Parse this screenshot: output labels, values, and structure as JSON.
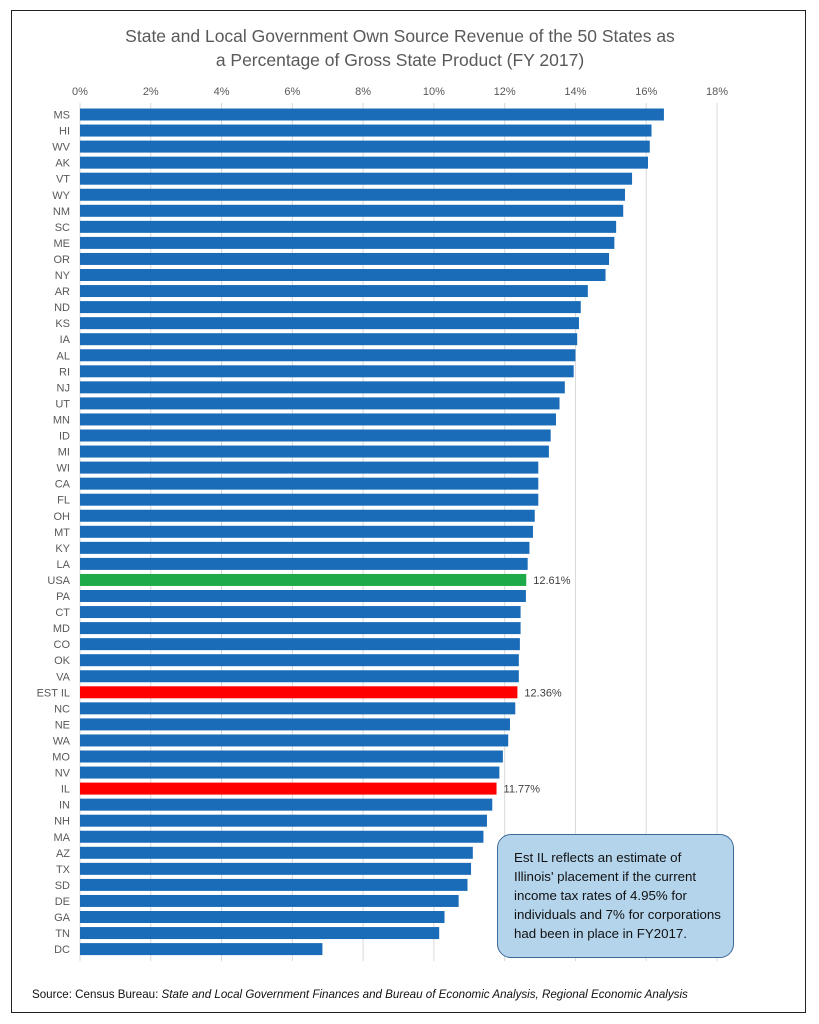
{
  "title_line1": "State and Local Government Own Source Revenue of the 50 States as",
  "title_line2": "a Percentage of Gross State Product (FY 2017)",
  "callout_text": "Est IL reflects an estimate of Illinois' placement if the current income tax rates of 4.95% for individuals and 7% for corporations had been in place in FY2017.",
  "source": {
    "prefix": "Source: Census Bureau: ",
    "italic": "State and Local Government Finances and Bureau of Economic Analysis, Regional Economic Analysis"
  },
  "colors": {
    "default": "#1a6cb8",
    "usa": "#1faa4a",
    "illinois": "#ff0000",
    "grid": "#d9d9d9"
  },
  "chart_data": {
    "type": "bar",
    "orientation": "horizontal",
    "xlim": [
      0,
      18
    ],
    "x_ticks": [
      "0%",
      "2%",
      "4%",
      "6%",
      "8%",
      "10%",
      "12%",
      "14%",
      "16%",
      "18%"
    ],
    "grid": true,
    "unit": "%",
    "categories": [
      "MS",
      "HI",
      "WV",
      "AK",
      "VT",
      "WY",
      "NM",
      "SC",
      "ME",
      "OR",
      "NY",
      "AR",
      "ND",
      "KS",
      "IA",
      "AL",
      "RI",
      "NJ",
      "UT",
      "MN",
      "ID",
      "MI",
      "WI",
      "CA",
      "FL",
      "OH",
      "MT",
      "KY",
      "LA",
      "USA",
      "PA",
      "CT",
      "MD",
      "CO",
      "OK",
      "VA",
      "EST IL",
      "NC",
      "NE",
      "WA",
      "MO",
      "NV",
      "IL",
      "IN",
      "NH",
      "MA",
      "AZ",
      "TX",
      "SD",
      "DE",
      "GA",
      "TN",
      "DC"
    ],
    "values": [
      16.5,
      16.15,
      16.1,
      16.05,
      15.6,
      15.4,
      15.35,
      15.15,
      15.1,
      14.95,
      14.85,
      14.35,
      14.15,
      14.1,
      14.05,
      14.0,
      13.95,
      13.7,
      13.55,
      13.45,
      13.3,
      13.25,
      12.95,
      12.95,
      12.95,
      12.85,
      12.8,
      12.7,
      12.65,
      12.61,
      12.6,
      12.45,
      12.45,
      12.43,
      12.4,
      12.4,
      12.36,
      12.3,
      12.15,
      12.1,
      11.95,
      11.85,
      11.77,
      11.65,
      11.5,
      11.4,
      11.1,
      11.05,
      10.95,
      10.7,
      10.3,
      10.15,
      6.85
    ],
    "highlight": {
      "USA": "usa",
      "EST IL": "illinois",
      "IL": "illinois"
    },
    "data_labels": {
      "USA": "12.61%",
      "EST IL": "12.36%",
      "IL": "11.77%"
    }
  }
}
